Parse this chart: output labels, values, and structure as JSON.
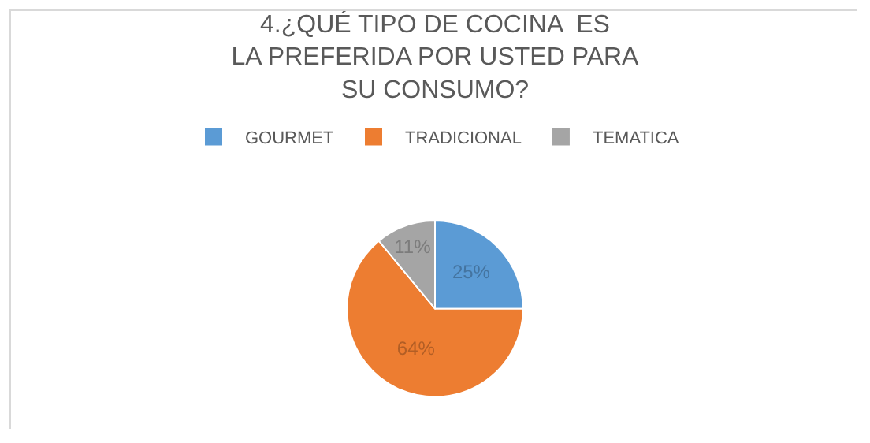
{
  "chart_data": {
    "type": "pie",
    "title": "4.¿QUÉ TIPO DE COCINA  ES LA PREFERIDA POR USTED PARA SU CONSUMO?",
    "categories": [
      "GOURMET",
      "TRADICIONAL",
      "TEMATICA"
    ],
    "values": [
      25,
      64,
      11
    ],
    "colors": [
      "#5b9bd5",
      "#ed7d31",
      "#a5a5a5"
    ],
    "value_labels": [
      "25%",
      "64%",
      "11%"
    ],
    "legend": "top"
  }
}
